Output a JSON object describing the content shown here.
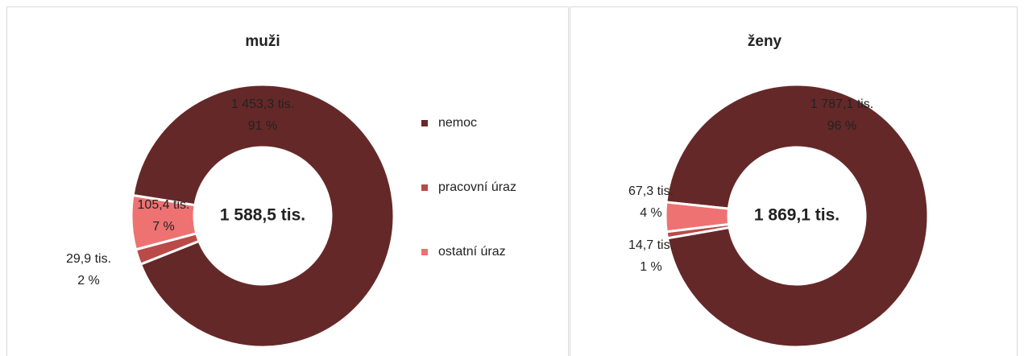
{
  "chart_data": [
    {
      "type": "donut",
      "title": "muži",
      "categories": [
        "nemoc",
        "pracovní úraz",
        "ostatní úraz"
      ],
      "colors": [
        "#652828",
        "#b94a48",
        "#ee7272"
      ],
      "values": [
        1453.3,
        29.9,
        105.4
      ],
      "value_labels": [
        "1 453,3 tis.",
        "29,9 tis.",
        "105,4 tis."
      ],
      "percents": [
        91,
        2,
        7
      ],
      "percent_labels": [
        "91 %",
        "2 %",
        "7 %"
      ],
      "total": 1588.5,
      "total_label": "1 588,5 tis.",
      "legend": "right"
    },
    {
      "type": "donut",
      "title": "ženy",
      "categories": [
        "nemoc",
        "pracovní úraz",
        "ostatní úraz"
      ],
      "colors": [
        "#652828",
        "#b94a48",
        "#ee7272"
      ],
      "values": [
        1787.1,
        14.7,
        67.3
      ],
      "value_labels": [
        "1 787,1 tis.",
        "14,7 tis.",
        "67,3 tis."
      ],
      "percents": [
        96,
        1,
        4
      ],
      "percent_labels": [
        "96 %",
        "1 %",
        "4 %"
      ],
      "total": 1869.1,
      "total_label": "1 869,1 tis."
    }
  ]
}
